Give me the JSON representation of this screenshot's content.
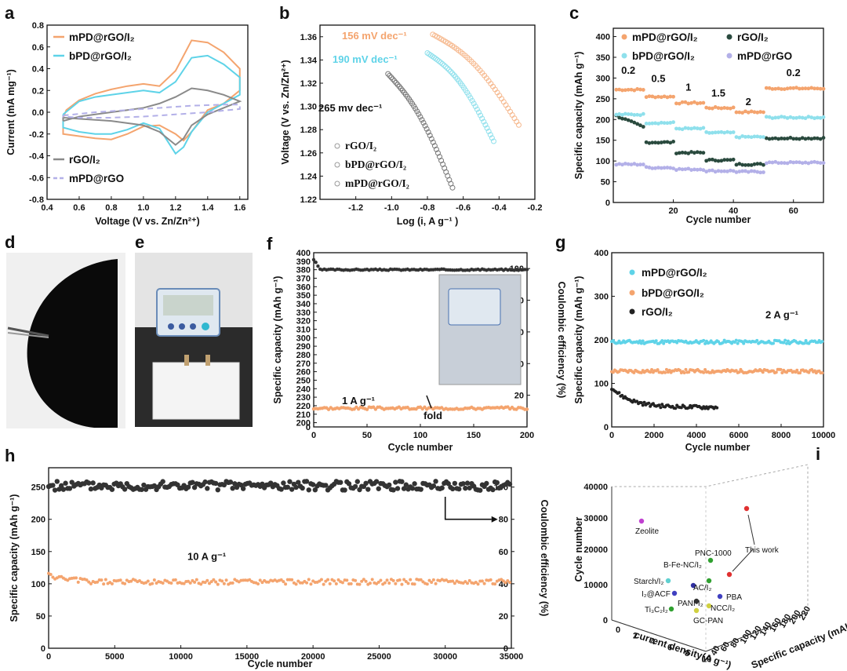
{
  "panels": {
    "a": {
      "label": "a"
    },
    "b": {
      "label": "b"
    },
    "c": {
      "label": "c"
    },
    "d": {
      "label": "d"
    },
    "e": {
      "label": "e"
    },
    "f": {
      "label": "f"
    },
    "g": {
      "label": "g"
    },
    "h": {
      "label": "h"
    },
    "i": {
      "label": "i"
    }
  },
  "colors": {
    "orange": "#f4a46e",
    "cyan": "#5ed3e8",
    "gray": "#8a8a8a",
    "lavender": "#b3b0e8",
    "black": "#2a2a2a"
  },
  "chart_data": [
    {
      "id": "a",
      "type": "line",
      "title": "",
      "xlabel": "Voltage (V vs. Zn/Zn²⁺)",
      "ylabel": "Current (mA mg⁻¹)",
      "xlim": [
        0.4,
        1.65
      ],
      "ylim": [
        -0.8,
        0.8
      ],
      "xticks": [
        "0.4",
        "0.6",
        "0.8",
        "1.0",
        "1.2",
        "1.4",
        "1.6"
      ],
      "yticks": [
        "0.8",
        "0.6",
        "0.4",
        "0.2",
        "0.0",
        "-0.2",
        "-0.4",
        "-0.6",
        "-0.8"
      ],
      "series": [
        {
          "name": "mPD@rGO/I₂",
          "color": "#f4a46e",
          "dash": false,
          "x": [
            0.5,
            0.52,
            0.6,
            0.7,
            0.8,
            0.9,
            1.0,
            1.1,
            1.2,
            1.3,
            1.4,
            1.5,
            1.6,
            1.6,
            1.55,
            1.5,
            1.4,
            1.3,
            1.25,
            1.2,
            1.1,
            1.0,
            0.9,
            0.8,
            0.7,
            0.6,
            0.5,
            0.5
          ],
          "y": [
            -0.05,
            0.02,
            0.11,
            0.17,
            0.21,
            0.24,
            0.26,
            0.24,
            0.38,
            0.66,
            0.64,
            0.55,
            0.4,
            0.2,
            0.14,
            0.08,
            0.02,
            -0.18,
            -0.26,
            -0.2,
            -0.12,
            -0.13,
            -0.2,
            -0.25,
            -0.24,
            -0.22,
            -0.2,
            -0.05
          ]
        },
        {
          "name": "bPD@rGO/I₂",
          "color": "#5ed3e8",
          "dash": false,
          "x": [
            0.5,
            0.6,
            0.7,
            0.8,
            0.9,
            1.0,
            1.1,
            1.2,
            1.3,
            1.4,
            1.5,
            1.6,
            1.6,
            1.5,
            1.4,
            1.3,
            1.25,
            1.2,
            1.1,
            1.0,
            0.9,
            0.8,
            0.7,
            0.6,
            0.5,
            0.5
          ],
          "y": [
            -0.02,
            0.1,
            0.14,
            0.16,
            0.18,
            0.2,
            0.18,
            0.28,
            0.5,
            0.52,
            0.44,
            0.32,
            0.16,
            0.08,
            0.0,
            -0.18,
            -0.32,
            -0.38,
            -0.15,
            -0.1,
            -0.16,
            -0.2,
            -0.2,
            -0.18,
            -0.14,
            -0.02
          ]
        },
        {
          "name": "rGO/I₂",
          "color": "#8a8a8a",
          "dash": false,
          "x": [
            0.5,
            0.6,
            0.7,
            0.8,
            0.9,
            1.0,
            1.1,
            1.2,
            1.3,
            1.4,
            1.5,
            1.6,
            1.6,
            1.5,
            1.4,
            1.3,
            1.25,
            1.2,
            1.1,
            1.0,
            0.9,
            0.8,
            0.7,
            0.6,
            0.5,
            0.5
          ],
          "y": [
            -0.08,
            -0.04,
            -0.02,
            0.0,
            0.02,
            0.04,
            0.08,
            0.14,
            0.22,
            0.2,
            0.16,
            0.1,
            0.1,
            0.04,
            -0.02,
            -0.12,
            -0.24,
            -0.3,
            -0.18,
            -0.12,
            -0.1,
            -0.08,
            -0.07,
            -0.06,
            -0.05,
            -0.08
          ]
        },
        {
          "name": "mPD@rGO",
          "color": "#b3b0e8",
          "dash": true,
          "x": [
            0.5,
            0.7,
            0.9,
            1.1,
            1.3,
            1.5,
            1.6,
            1.6,
            1.4,
            1.2,
            1.0,
            0.8,
            0.6,
            0.5,
            0.5
          ],
          "y": [
            -0.03,
            0.0,
            0.02,
            0.04,
            0.06,
            0.07,
            0.07,
            0.03,
            0.0,
            -0.02,
            -0.04,
            -0.05,
            -0.05,
            -0.04,
            -0.03
          ]
        }
      ]
    },
    {
      "id": "b",
      "type": "scatter",
      "xlabel": "Log (i, A g⁻¹ )",
      "ylabel": "Voltage (V vs. Zn/Zn²⁺)",
      "xlim": [
        -1.4,
        -0.2
      ],
      "ylim": [
        1.22,
        1.37
      ],
      "xticks": [
        "-1.2",
        "-1.0",
        "-0.8",
        "-0.6",
        "-0.4",
        "-0.2"
      ],
      "yticks": [
        "1.36",
        "1.34",
        "1.32",
        "1.30",
        "1.28",
        "1.26",
        "1.24",
        "1.22"
      ],
      "annotations": [
        {
          "text": "156 mV dec⁻¹",
          "color": "#f4a46e"
        },
        {
          "text": "190 mV dec⁻¹",
          "color": "#5ed3e8"
        },
        {
          "text": "265 mv dec⁻¹",
          "color": "#111111"
        }
      ],
      "series": [
        {
          "name": "rGO/I₂",
          "color": "#777777",
          "x0": -1.02,
          "y0": 1.328,
          "x1": -0.66,
          "y1": 1.23
        },
        {
          "name": "bPD@rGO/I₂",
          "color": "#8fe0ec",
          "x0": -0.8,
          "y0": 1.346,
          "x1": -0.43,
          "y1": 1.27
        },
        {
          "name": "mPD@rGO/I₂",
          "color": "#f6b88d",
          "x0": -0.77,
          "y0": 1.362,
          "x1": -0.29,
          "y1": 1.284
        }
      ]
    },
    {
      "id": "c",
      "type": "scatter",
      "xlabel": "Cycle number",
      "ylabel": "Specific capacity (mAh g⁻¹)",
      "xlim": [
        0,
        70
      ],
      "ylim": [
        0,
        420
      ],
      "xticks": [
        "20",
        "40",
        "60"
      ],
      "yticks": [
        "400",
        "350",
        "300",
        "250",
        "200",
        "150",
        "100",
        "50",
        "0"
      ],
      "rate_labels": [
        "0.2",
        "0.5",
        "1",
        "1.5",
        "2",
        "0.2"
      ],
      "series": [
        {
          "name": "mPD@rGO/I₂",
          "color": "#f4a46e",
          "steps": [
            272,
            255,
            240,
            228,
            218,
            275
          ]
        },
        {
          "name": "rGO/I₂",
          "color": "#2a4a3e",
          "steps": [
            182,
            145,
            120,
            102,
            92,
            155
          ]
        },
        {
          "name": "bPD@rGO/I₂",
          "color": "#8fe0ec",
          "steps": [
            212,
            192,
            178,
            168,
            158,
            205
          ]
        },
        {
          "name": "mPD@rGO",
          "color": "#b3b0e8",
          "steps": [
            92,
            84,
            80,
            76,
            74,
            96
          ]
        }
      ]
    },
    {
      "id": "f",
      "type": "scatter",
      "xlabel": "Cycle number",
      "ylabel": "Specific capacity (mAh g⁻¹)",
      "ylabel2": "Coulombic efficiency (%)",
      "xlim": [
        0,
        200
      ],
      "ylim": [
        195,
        400
      ],
      "y2lim": [
        0,
        110
      ],
      "xticks": [
        "0",
        "50",
        "100",
        "150",
        "200"
      ],
      "yticks": [
        "400",
        "390",
        "380",
        "370",
        "360",
        "350",
        "340",
        "330",
        "320",
        "310",
        "300",
        "290",
        "280",
        "270",
        "260",
        "250",
        "240",
        "230",
        "220",
        "210",
        "200"
      ],
      "y2ticks": [
        "100",
        "80",
        "60",
        "40",
        "20"
      ],
      "annotations": [
        {
          "text": "1 A g⁻¹"
        },
        {
          "text": "fold"
        }
      ],
      "series": [
        {
          "name": "capacity",
          "color": "#f4a46e",
          "level": 217
        },
        {
          "name": "coulombic efficiency",
          "color": "#333333",
          "level": 380
        }
      ]
    },
    {
      "id": "g",
      "type": "scatter",
      "xlabel": "Cycle number",
      "ylabel": "Specific capacity (mAh g⁻¹)",
      "xlim": [
        0,
        10000
      ],
      "ylim": [
        0,
        400
      ],
      "xticks": [
        "0",
        "2000",
        "4000",
        "6000",
        "8000",
        "10000"
      ],
      "yticks": [
        "400",
        "300",
        "200",
        "100",
        "0"
      ],
      "annotations": [
        {
          "text": "2 A g⁻¹"
        }
      ],
      "series": [
        {
          "name": "mPD@rGO/I₂",
          "color": "#5ed3e8",
          "level": 195
        },
        {
          "name": "bPD@rGO/I₂",
          "color": "#f4a46e",
          "level": 128
        },
        {
          "name": "rGO/I₂",
          "color": "#222222",
          "level": 45
        }
      ]
    },
    {
      "id": "h",
      "type": "scatter",
      "xlabel": "Cycle number",
      "ylabel": "Specific capacity (mAh g⁻¹)",
      "ylabel2": "Coulombic efficiency (%)",
      "xlim": [
        0,
        35000
      ],
      "ylim": [
        0,
        280
      ],
      "y2lim": [
        0,
        112
      ],
      "xticks": [
        "0",
        "5000",
        "10000",
        "15000",
        "20000",
        "25000",
        "30000",
        "35000"
      ],
      "yticks": [
        "250",
        "200",
        "150",
        "100",
        "50",
        "0"
      ],
      "y2ticks": [
        "100",
        "80",
        "60",
        "40",
        "20",
        "0"
      ],
      "annotations": [
        {
          "text": "10 A g⁻¹"
        }
      ],
      "series": [
        {
          "name": "coulombic efficiency",
          "color": "#333333",
          "level": 252
        },
        {
          "name": "capacity",
          "color": "#f4a46e",
          "level": 103
        }
      ]
    },
    {
      "id": "i",
      "type": "scatter",
      "xlabel": "current density(A g⁻¹)",
      "ylabel": "Cycle number",
      "zlabel": "Specific capacity (mAh g⁻¹)",
      "yticks": [
        "40000",
        "30000",
        "20000",
        "10000",
        "0"
      ],
      "xticks": [
        "0",
        "2",
        "4",
        "6",
        "8",
        "10"
      ],
      "zticks": [
        "40",
        "60",
        "80",
        "100",
        "120",
        "140",
        "160",
        "180",
        "200",
        "220"
      ],
      "points": [
        {
          "label": "Zeolite",
          "color": "#c040d0"
        },
        {
          "label": "PNC-1000",
          "color": "#30a030"
        },
        {
          "label": "B-Fe-NC/I₂",
          "color": "#30a030"
        },
        {
          "label": "This work",
          "color": "#e03030"
        },
        {
          "label": "Starch/I₂",
          "color": "#60d0d0"
        },
        {
          "label": "I₂@ACF",
          "color": "#4040c0"
        },
        {
          "label": "AC/I₂",
          "color": "#3030a0"
        },
        {
          "label": "PBA",
          "color": "#4040c0"
        },
        {
          "label": "PANI-I₂",
          "color": "#333333"
        },
        {
          "label": "NCC/I₂",
          "color": "#d0d040"
        },
        {
          "label": "Ti₃C₂I₂",
          "color": "#30a030"
        },
        {
          "label": "GC-PAN",
          "color": "#d0d040"
        }
      ]
    }
  ]
}
